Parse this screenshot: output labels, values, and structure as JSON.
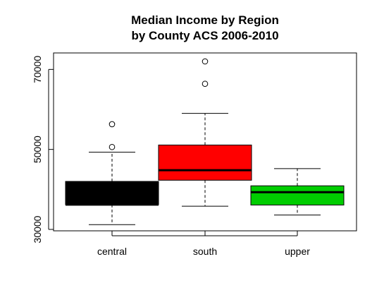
{
  "chart_data": {
    "type": "boxplot",
    "title": "Median Income by Region",
    "subtitle": "by County ACS 2006-2010",
    "xlabel": "",
    "ylabel": "",
    "ylim": [
      30000,
      72000
    ],
    "y_ticks": [
      30000,
      50000,
      70000
    ],
    "y_tick_labels": [
      "30000",
      "50000",
      "70000"
    ],
    "categories": [
      "central",
      "south",
      "upper"
    ],
    "grid": false,
    "legend": "none",
    "boxes": [
      {
        "name": "central",
        "color": "#000000",
        "whisker_low": 31200,
        "q1": 36200,
        "median": 36200,
        "q3": 42000,
        "whisker_high": 49300,
        "outliers": [
          50600,
          56300
        ]
      },
      {
        "name": "south",
        "color": "#ff0000",
        "whisker_low": 35800,
        "q1": 42300,
        "median": 44800,
        "q3": 51100,
        "whisker_high": 59000,
        "outliers": [
          66400,
          72000
        ]
      },
      {
        "name": "upper",
        "color": "#00cd00",
        "whisker_low": 33600,
        "q1": 36100,
        "median": 39300,
        "q3": 40900,
        "whisker_high": 45200,
        "outliers": []
      }
    ]
  }
}
